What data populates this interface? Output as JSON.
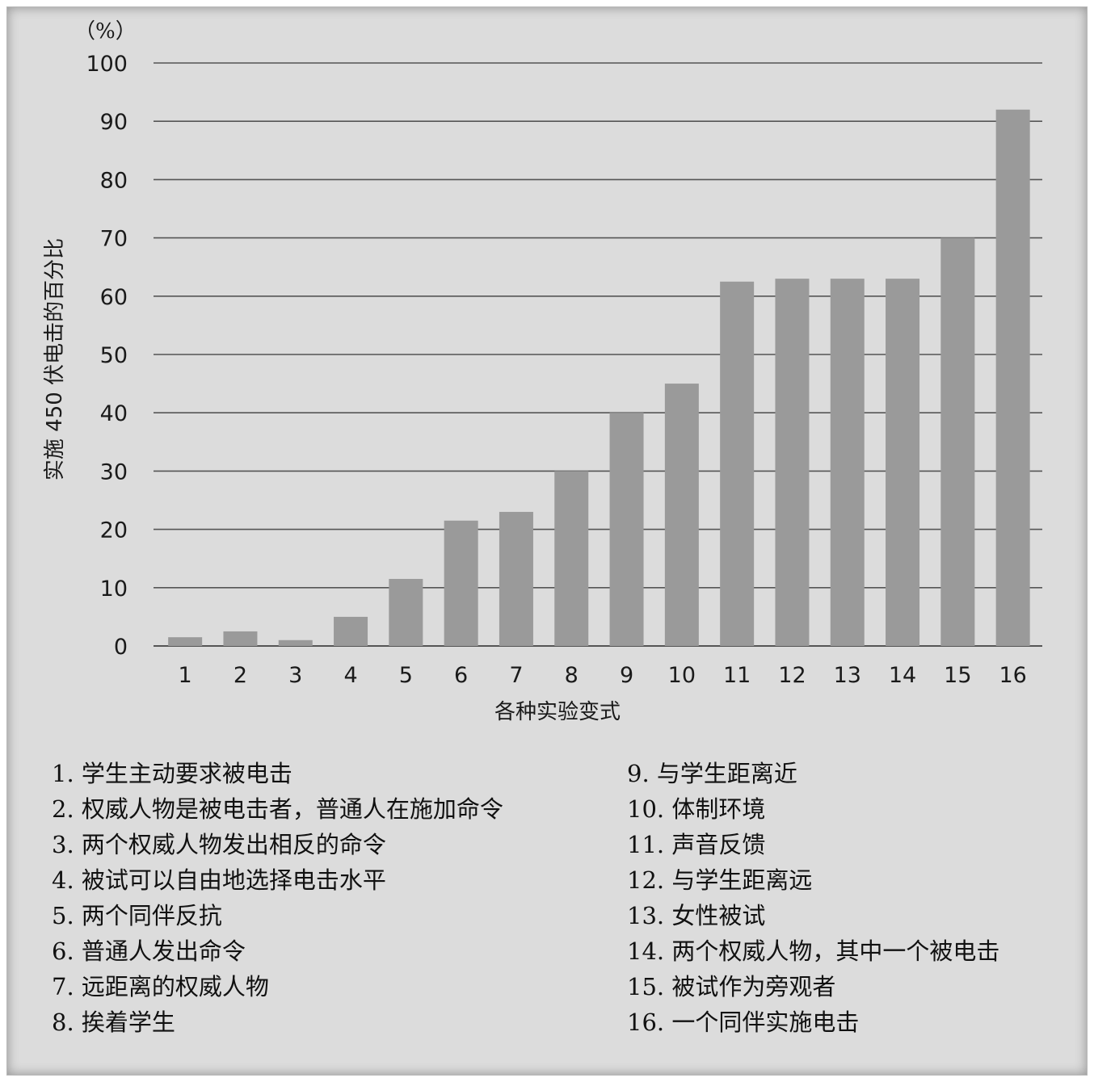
{
  "chart_data": {
    "type": "bar",
    "unit_label": "（%）",
    "xlabel": "各种实验变式",
    "ylabel": "实施 450 伏电击的百分比",
    "ylim": [
      0,
      100
    ],
    "yticks": [
      0,
      10,
      20,
      30,
      40,
      50,
      60,
      70,
      80,
      90,
      100
    ],
    "grid": true,
    "bar_color": "#9a9a9a",
    "categories": [
      "1",
      "2",
      "3",
      "4",
      "5",
      "6",
      "7",
      "8",
      "9",
      "10",
      "11",
      "12",
      "13",
      "14",
      "15",
      "16"
    ],
    "values": [
      1.5,
      2.5,
      1,
      5,
      11.5,
      21.5,
      23,
      30,
      40,
      45,
      62.5,
      63,
      63,
      63,
      70,
      92
    ]
  },
  "legend": {
    "left": [
      "1. 学生主动要求被电击",
      "2. 权威人物是被电击者，普通人在施加命令",
      "3. 两个权威人物发出相反的命令",
      "4. 被试可以自由地选择电击水平",
      "5. 两个同伴反抗",
      "6. 普通人发出命令",
      "7. 远距离的权威人物",
      "8. 挨着学生"
    ],
    "right": [
      "9. 与学生距离近",
      "10. 体制环境",
      "11. 声音反馈",
      "12. 与学生距离远",
      "13. 女性被试",
      "14. 两个权威人物，其中一个被电击",
      "15. 被试作为旁观者",
      "16. 一个同伴实施电击"
    ]
  }
}
